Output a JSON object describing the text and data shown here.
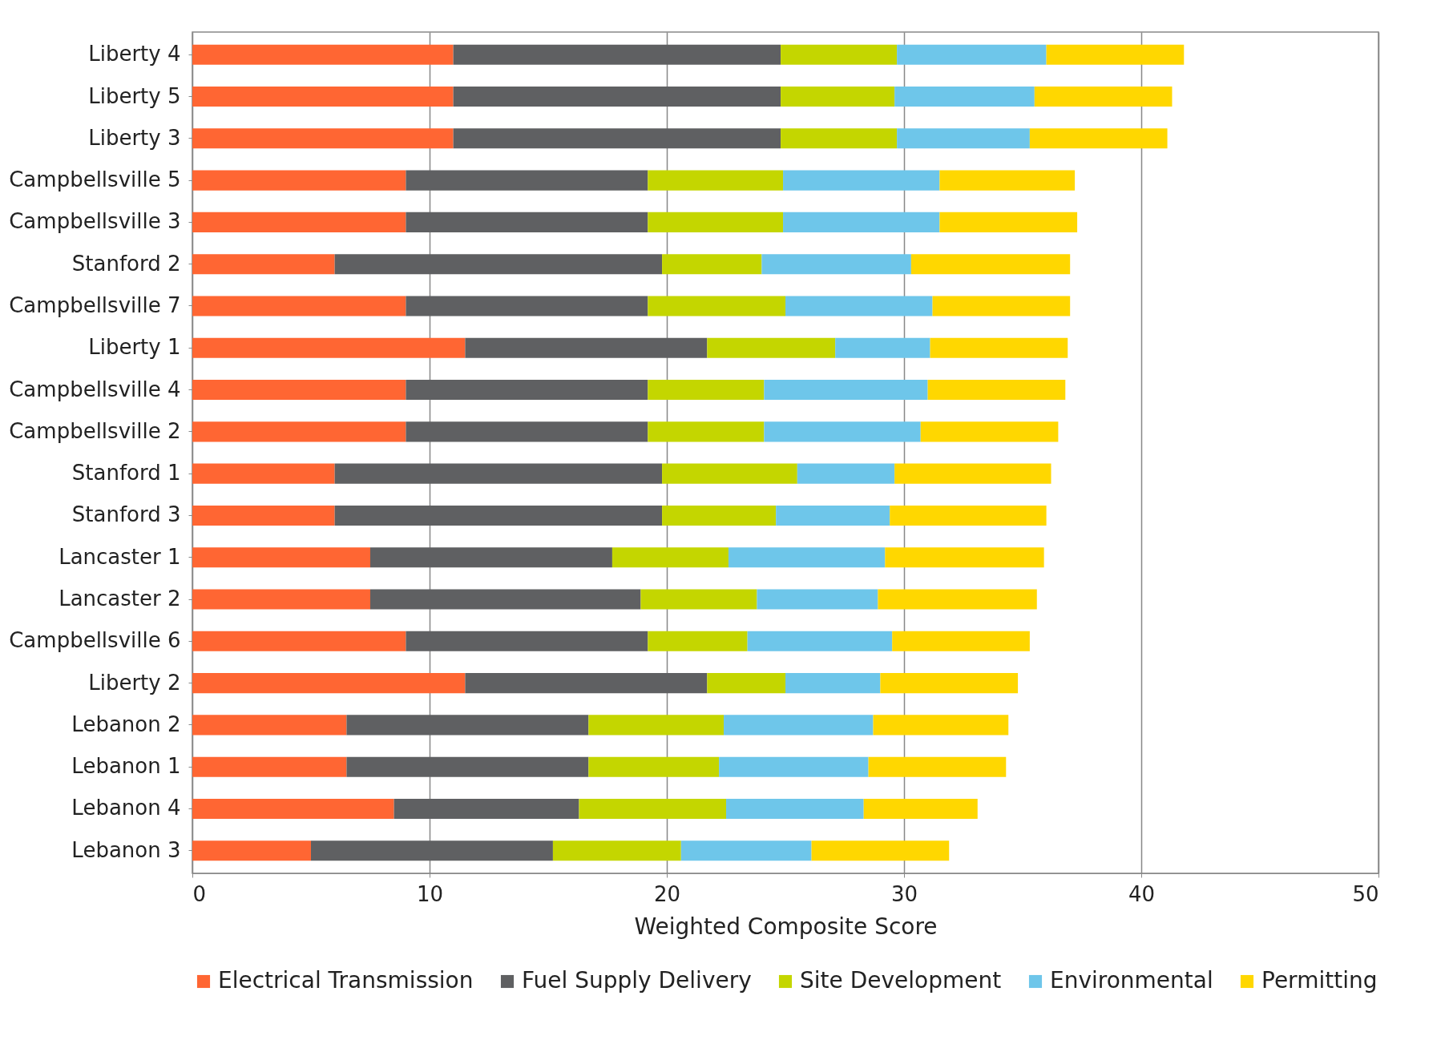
{
  "chart_data": {
    "type": "bar",
    "orientation": "horizontal",
    "stacked": true,
    "xlabel": "Weighted Composite Score",
    "xlim": [
      0,
      50
    ],
    "xticks": [
      0,
      10,
      20,
      30,
      40,
      50
    ],
    "grid": "x",
    "legend": "bottom",
    "categories": [
      "Liberty 4",
      "Liberty 5",
      "Liberty 3",
      "Campbellsville 5",
      "Campbellsville 3",
      "Stanford 2",
      "Campbellsville 7",
      "Liberty 1",
      "Campbellsville 4",
      "Campbellsville 2",
      "Stanford 1",
      "Stanford 3",
      "Lancaster 1",
      "Lancaster 2",
      "Campbellsville 6",
      "Liberty 2",
      "Lebanon 2",
      "Lebanon 1",
      "Lebanon 4",
      "Lebanon 3"
    ],
    "series": [
      {
        "name": "Electrical Transmission",
        "color": "#ff6633",
        "values": [
          11.0,
          11.0,
          11.0,
          9.0,
          9.0,
          6.0,
          9.0,
          11.5,
          9.0,
          9.0,
          6.0,
          6.0,
          7.5,
          7.5,
          9.0,
          11.5,
          6.5,
          6.5,
          8.5,
          5.0
        ]
      },
      {
        "name": "Fuel Supply Delivery",
        "color": "#5f6062",
        "values": [
          13.8,
          13.8,
          13.8,
          10.2,
          10.2,
          13.8,
          10.2,
          10.2,
          10.2,
          10.2,
          13.8,
          13.8,
          10.2,
          11.4,
          10.2,
          10.2,
          10.2,
          10.2,
          7.8,
          10.2
        ]
      },
      {
        "name": "Site Development",
        "color": "#c4d600",
        "values": [
          4.9,
          4.8,
          4.9,
          5.7,
          5.7,
          4.2,
          5.8,
          5.4,
          4.9,
          4.9,
          5.7,
          4.8,
          4.9,
          4.9,
          4.2,
          3.3,
          5.7,
          5.5,
          6.2,
          5.4
        ]
      },
      {
        "name": "Environmental",
        "color": "#6ec6ea",
        "values": [
          6.3,
          5.9,
          5.6,
          6.6,
          6.6,
          6.3,
          6.2,
          4.0,
          6.9,
          6.6,
          4.1,
          4.8,
          6.6,
          5.1,
          6.1,
          4.0,
          6.3,
          6.3,
          5.8,
          5.5
        ]
      },
      {
        "name": "Permitting",
        "color": "#ffd700",
        "values": [
          5.8,
          5.8,
          5.8,
          5.7,
          5.8,
          6.7,
          5.8,
          5.8,
          5.8,
          5.8,
          6.6,
          6.6,
          6.7,
          6.7,
          5.8,
          5.8,
          5.7,
          5.8,
          4.8,
          5.8
        ]
      }
    ]
  }
}
